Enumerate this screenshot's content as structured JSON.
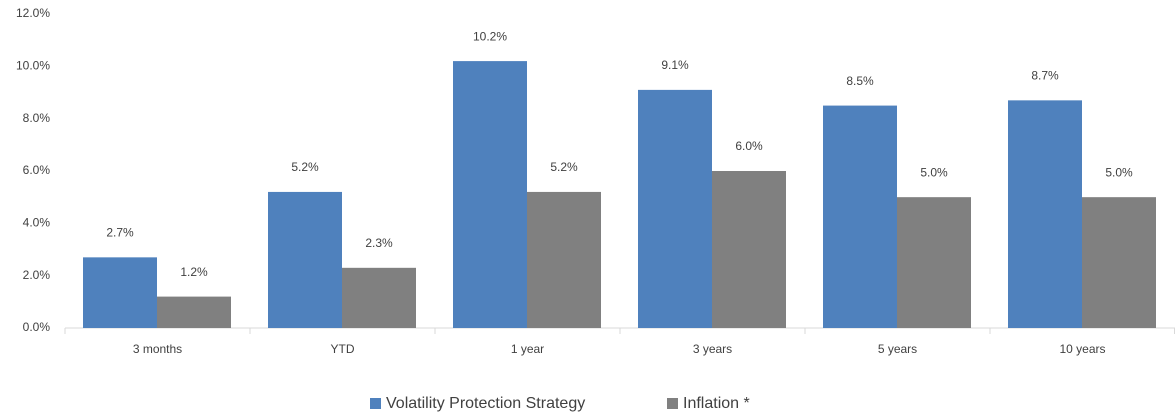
{
  "chart_data": {
    "type": "bar",
    "categories": [
      "3 months",
      "YTD",
      "1 year",
      "3 years",
      "5 years",
      "10 years"
    ],
    "series": [
      {
        "name": "Volatility Protection Strategy",
        "color": "#4f81bd",
        "values": [
          2.7,
          5.2,
          10.2,
          9.1,
          8.5,
          8.7
        ],
        "value_labels": [
          "2.7%",
          "5.2%",
          "10.2%",
          "9.1%",
          "8.5%",
          "8.7%"
        ]
      },
      {
        "name": "Inflation *",
        "color": "#808080",
        "values": [
          1.2,
          2.3,
          5.2,
          6.0,
          5.0,
          5.0
        ],
        "value_labels": [
          "1.2%",
          "2.3%",
          "5.2%",
          "6.0%",
          "5.0%",
          "5.0%"
        ]
      }
    ],
    "ylim": [
      0,
      12
    ],
    "yticks": [
      {
        "value": 0,
        "label": "0.0%"
      },
      {
        "value": 2,
        "label": "2.0%"
      },
      {
        "value": 4,
        "label": "4.0%"
      },
      {
        "value": 6,
        "label": "6.0%"
      },
      {
        "value": 8,
        "label": "8.0%"
      },
      {
        "value": 10,
        "label": "10.0%"
      },
      {
        "value": 12,
        "label": "12.0%"
      }
    ],
    "grid": false,
    "legend": "bottom"
  }
}
